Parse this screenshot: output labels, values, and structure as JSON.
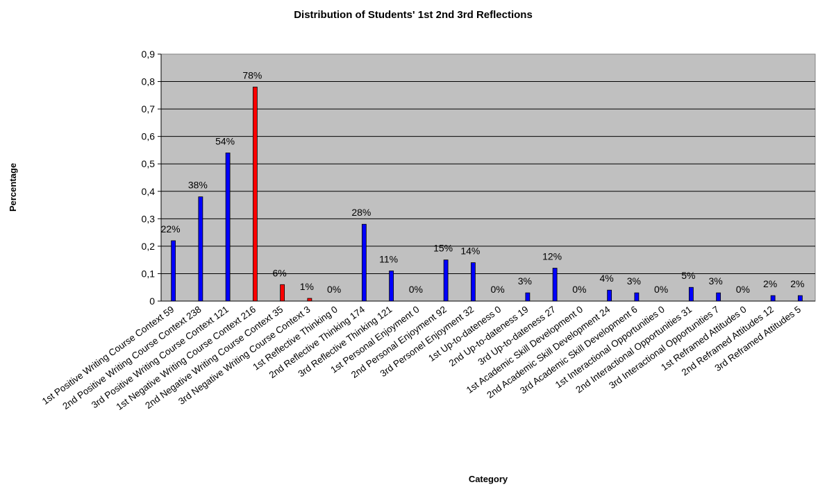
{
  "chart_data": {
    "type": "bar",
    "title": "Distribution of Students' 1st 2nd 3rd Reflections",
    "xlabel": "Category",
    "ylabel": "Percentage",
    "ylim": [
      0,
      0.9
    ],
    "yticks": [
      "0",
      "0,1",
      "0,2",
      "0,3",
      "0,4",
      "0,5",
      "0,6",
      "0,7",
      "0,8",
      "0,9"
    ],
    "grid": true,
    "colors": {
      "plot_bg": "#c0c0c0",
      "default_bar": "#0000ff",
      "highlight_bar": "#ff0000"
    },
    "categories": [
      "1st Positive Writing Course Context 59",
      "2nd Positive Writing Course Context 238",
      "3rd Positive Writing Course Context 121",
      "1st Negative Writing Course Context 216",
      "2nd Negative Writing Course Context 35",
      "3rd Negative Writing Course Context 3",
      "1st Reflective Thinking 0",
      "2nd Reflective Thinking 174",
      "3rd Reflective Thinking 121",
      "1st Personal Enjoyment 0",
      "2nd Personal Enjoyment 92",
      "3rd Personel Enjoyment 32",
      "1st Up-to-dateness 0",
      "2nd Up-to-dateness 19",
      "3rd Up-to-dateness 27",
      "1st Academic Skill Development 0",
      "2nd Academic Skill Development 24",
      "3rd Academic Skill Development 6",
      "1st Interactional Opportunities 0",
      "2nd Interactional Opportunities 31",
      "3rd Interactional Opportunities 7",
      "1st Reframed Attitudes 0",
      "2nd Reframed Attitudes 12",
      "3rd Reframed Attitudes 5"
    ],
    "values": [
      0.22,
      0.38,
      0.54,
      0.78,
      0.06,
      0.01,
      0,
      0.28,
      0.11,
      0,
      0.15,
      0.14,
      0,
      0.03,
      0.12,
      0,
      0.04,
      0.03,
      0,
      0.05,
      0.03,
      0,
      0.02,
      0.02
    ],
    "data_labels": [
      "22%",
      "38%",
      "54%",
      "78%",
      "6%",
      "1%",
      "0%",
      "28%",
      "11%",
      "0%",
      "15%",
      "14%",
      "0%",
      "3%",
      "12%",
      "0%",
      "4%",
      "3%",
      "0%",
      "5%",
      "3%",
      "0%",
      "2%",
      "2%"
    ],
    "bar_colors": [
      "blue",
      "blue",
      "blue",
      "red",
      "red",
      "red",
      "blue",
      "blue",
      "blue",
      "blue",
      "blue",
      "blue",
      "blue",
      "blue",
      "blue",
      "blue",
      "blue",
      "blue",
      "blue",
      "blue",
      "blue",
      "blue",
      "blue",
      "blue"
    ]
  }
}
